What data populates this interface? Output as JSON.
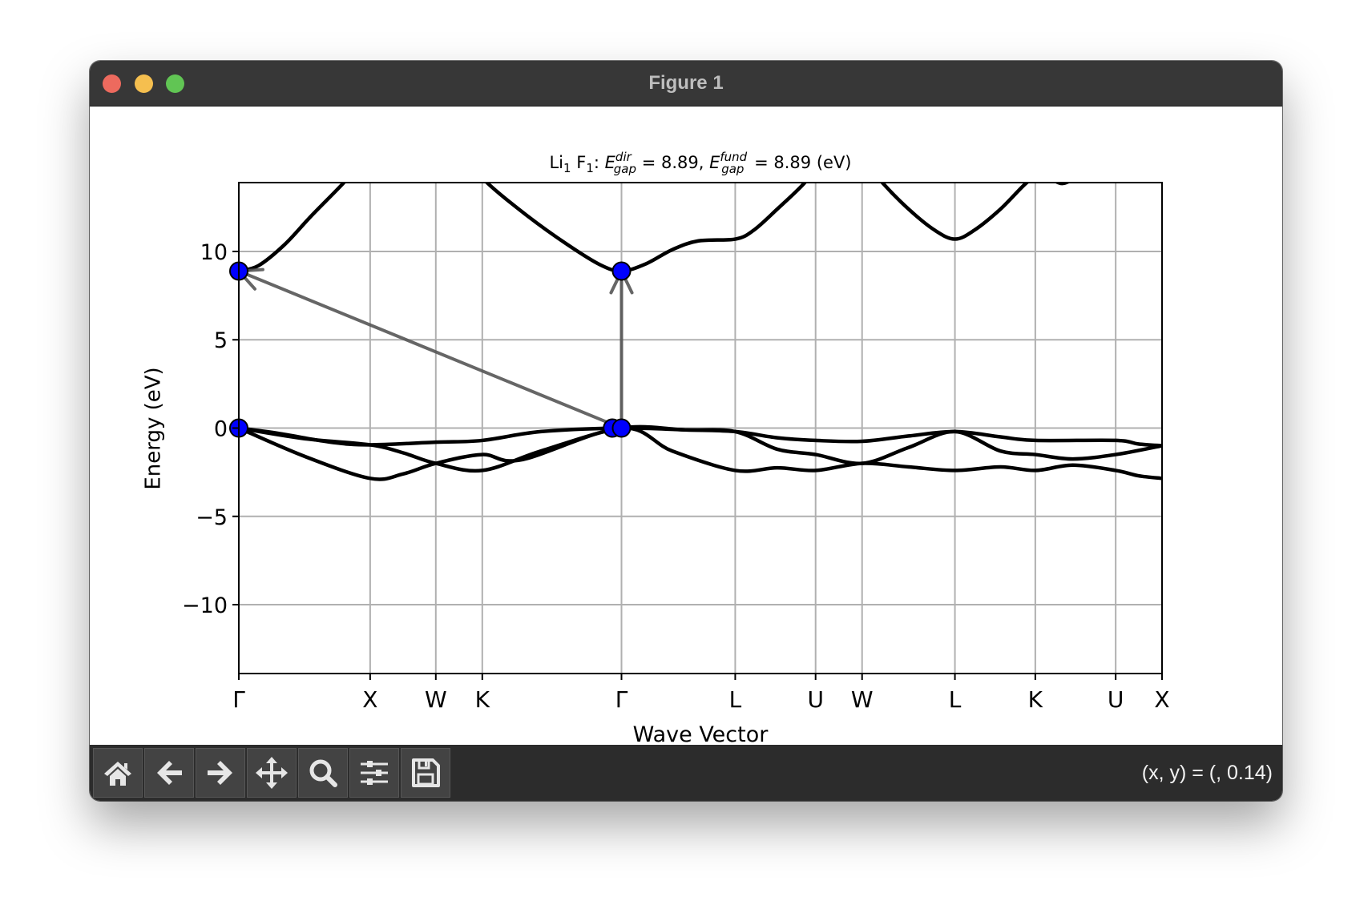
{
  "window": {
    "title": "Figure 1",
    "controls": {
      "close_color": "#ed6a5e",
      "minimize_color": "#f5bf4f",
      "maximize_color": "#61c554"
    }
  },
  "toolbar": {
    "buttons": [
      {
        "name": "home",
        "icon": "home-icon"
      },
      {
        "name": "back",
        "icon": "arrow-left-icon"
      },
      {
        "name": "forward",
        "icon": "arrow-right-icon"
      },
      {
        "name": "pan",
        "icon": "move-icon"
      },
      {
        "name": "zoom",
        "icon": "magnifier-icon"
      },
      {
        "name": "configure-subplots",
        "icon": "sliders-icon"
      },
      {
        "name": "save",
        "icon": "floppy-disk-icon"
      }
    ],
    "status": "(x, y) = (, 0.14)"
  },
  "chart_data": {
    "type": "line",
    "title_parts": {
      "formula_a": "Li",
      "sub_a": "1",
      "formula_b": " F",
      "sub_b": "1",
      "colon": ": ",
      "e1": "E",
      "sup1": "dir",
      "sub1": "gap",
      "eq1": " = 8.89, ",
      "e2": "E",
      "sup2": "fund",
      "sub2": "gap",
      "eq2": " = 8.89 (eV)"
    },
    "xlabel": "Wave Vector",
    "ylabel": "Energy (eV)",
    "ylim": [
      -13.9,
      13.9
    ],
    "xlim": [
      0,
      7.03
    ],
    "grid": true,
    "xticks": [
      {
        "x": 0,
        "label": "Γ"
      },
      {
        "x": 1.0,
        "label": "X"
      },
      {
        "x": 1.5,
        "label": "W"
      },
      {
        "x": 1.854,
        "label": "K"
      },
      {
        "x": 2.914,
        "label": "Γ"
      },
      {
        "x": 3.78,
        "label": "L"
      },
      {
        "x": 4.392,
        "label": "U"
      },
      {
        "x": 4.746,
        "label": "W"
      },
      {
        "x": 5.453,
        "label": "L"
      },
      {
        "x": 6.065,
        "label": "K"
      },
      {
        "x": 6.677,
        "label": "U"
      },
      {
        "x": 7.03,
        "label": "X"
      }
    ],
    "yticks": [
      {
        "y": 10,
        "label": "10"
      },
      {
        "y": 5,
        "label": "5"
      },
      {
        "y": 0,
        "label": "0"
      },
      {
        "y": -5,
        "label": "−5"
      },
      {
        "y": -10,
        "label": "−10"
      }
    ],
    "line_color": "#000000",
    "series": [
      {
        "points": [
          [
            0,
            8.89
          ],
          [
            0.15,
            9.2
          ],
          [
            0.35,
            10.4
          ],
          [
            0.55,
            12.0
          ],
          [
            0.8,
            13.9
          ],
          [
            1.0,
            15.6
          ]
        ]
      },
      {
        "points": [
          [
            1.7,
            15.6
          ],
          [
            1.89,
            13.9
          ],
          [
            2.2,
            12.0
          ],
          [
            2.5,
            10.4
          ],
          [
            2.75,
            9.25
          ],
          [
            2.914,
            8.89
          ],
          [
            3.1,
            9.3
          ],
          [
            3.3,
            10.1
          ],
          [
            3.5,
            10.6
          ],
          [
            3.78,
            10.7
          ],
          [
            3.92,
            11.2
          ],
          [
            4.1,
            12.4
          ],
          [
            4.31,
            13.9
          ],
          [
            4.45,
            15.3
          ]
        ]
      },
      {
        "points": [
          [
            4.75,
            15.3
          ],
          [
            4.9,
            13.9
          ],
          [
            5.1,
            12.4
          ],
          [
            5.3,
            11.2
          ],
          [
            5.453,
            10.7
          ],
          [
            5.6,
            11.2
          ],
          [
            5.8,
            12.4
          ],
          [
            6.0,
            13.9
          ],
          [
            6.12,
            14.4
          ]
        ]
      },
      {
        "points": [
          [
            6.15,
            14.3
          ],
          [
            6.27,
            13.85
          ],
          [
            6.4,
            14.3
          ]
        ]
      },
      {
        "points": [
          [
            0,
            0
          ],
          [
            0.3,
            -0.3
          ],
          [
            0.7,
            -0.8
          ],
          [
            1.0,
            -0.95
          ],
          [
            1.5,
            -0.8
          ],
          [
            1.854,
            -0.7
          ],
          [
            2.3,
            -0.2
          ],
          [
            2.914,
            0
          ],
          [
            3.4,
            -0.1
          ],
          [
            3.78,
            -0.2
          ],
          [
            4.1,
            -0.55
          ],
          [
            4.392,
            -0.7
          ],
          [
            4.746,
            -0.75
          ],
          [
            5.1,
            -0.45
          ],
          [
            5.453,
            -0.2
          ],
          [
            5.8,
            -0.5
          ],
          [
            6.065,
            -0.7
          ],
          [
            6.677,
            -0.7
          ],
          [
            6.85,
            -0.9
          ],
          [
            7.03,
            -1.0
          ]
        ]
      },
      {
        "points": [
          [
            0,
            0
          ],
          [
            0.5,
            -0.6
          ],
          [
            1.0,
            -0.95
          ],
          [
            1.25,
            -1.4
          ],
          [
            1.5,
            -2.0
          ],
          [
            1.854,
            -2.4
          ],
          [
            2.3,
            -1.3
          ],
          [
            2.914,
            0
          ],
          [
            3.4,
            -0.1
          ],
          [
            3.78,
            -0.2
          ],
          [
            4.1,
            -1.2
          ],
          [
            4.392,
            -1.5
          ],
          [
            4.746,
            -2.0
          ],
          [
            5.1,
            -1.1
          ],
          [
            5.453,
            -0.2
          ],
          [
            5.8,
            -1.3
          ],
          [
            6.065,
            -1.5
          ],
          [
            6.35,
            -1.75
          ],
          [
            6.677,
            -1.5
          ],
          [
            7.03,
            -1.0
          ]
        ]
      },
      {
        "points": [
          [
            0,
            0
          ],
          [
            0.5,
            -1.6
          ],
          [
            1.0,
            -2.85
          ],
          [
            1.25,
            -2.6
          ],
          [
            1.5,
            -2.0
          ],
          [
            1.854,
            -1.5
          ],
          [
            2.15,
            -1.8
          ],
          [
            2.914,
            0
          ],
          [
            3.3,
            -1.3
          ],
          [
            3.78,
            -2.4
          ],
          [
            4.1,
            -2.25
          ],
          [
            4.392,
            -2.4
          ],
          [
            4.746,
            -2.0
          ],
          [
            5.1,
            -2.2
          ],
          [
            5.453,
            -2.4
          ],
          [
            5.8,
            -2.2
          ],
          [
            6.065,
            -2.4
          ],
          [
            6.35,
            -2.1
          ],
          [
            6.677,
            -2.4
          ],
          [
            6.85,
            -2.7
          ],
          [
            7.03,
            -2.85
          ]
        ]
      }
    ],
    "gap_arrows": [
      {
        "from": [
          2.914,
          0
        ],
        "to": [
          0,
          8.89
        ],
        "kind": "fundamental"
      },
      {
        "from": [
          2.914,
          0
        ],
        "to": [
          2.914,
          8.89
        ],
        "kind": "direct"
      }
    ],
    "arrow_color": "#555555",
    "markers": [
      [
        0,
        0
      ],
      [
        0,
        8.89
      ],
      [
        2.845,
        0
      ],
      [
        2.914,
        0
      ],
      [
        2.914,
        8.89
      ]
    ],
    "marker_color": "#0000ff"
  }
}
